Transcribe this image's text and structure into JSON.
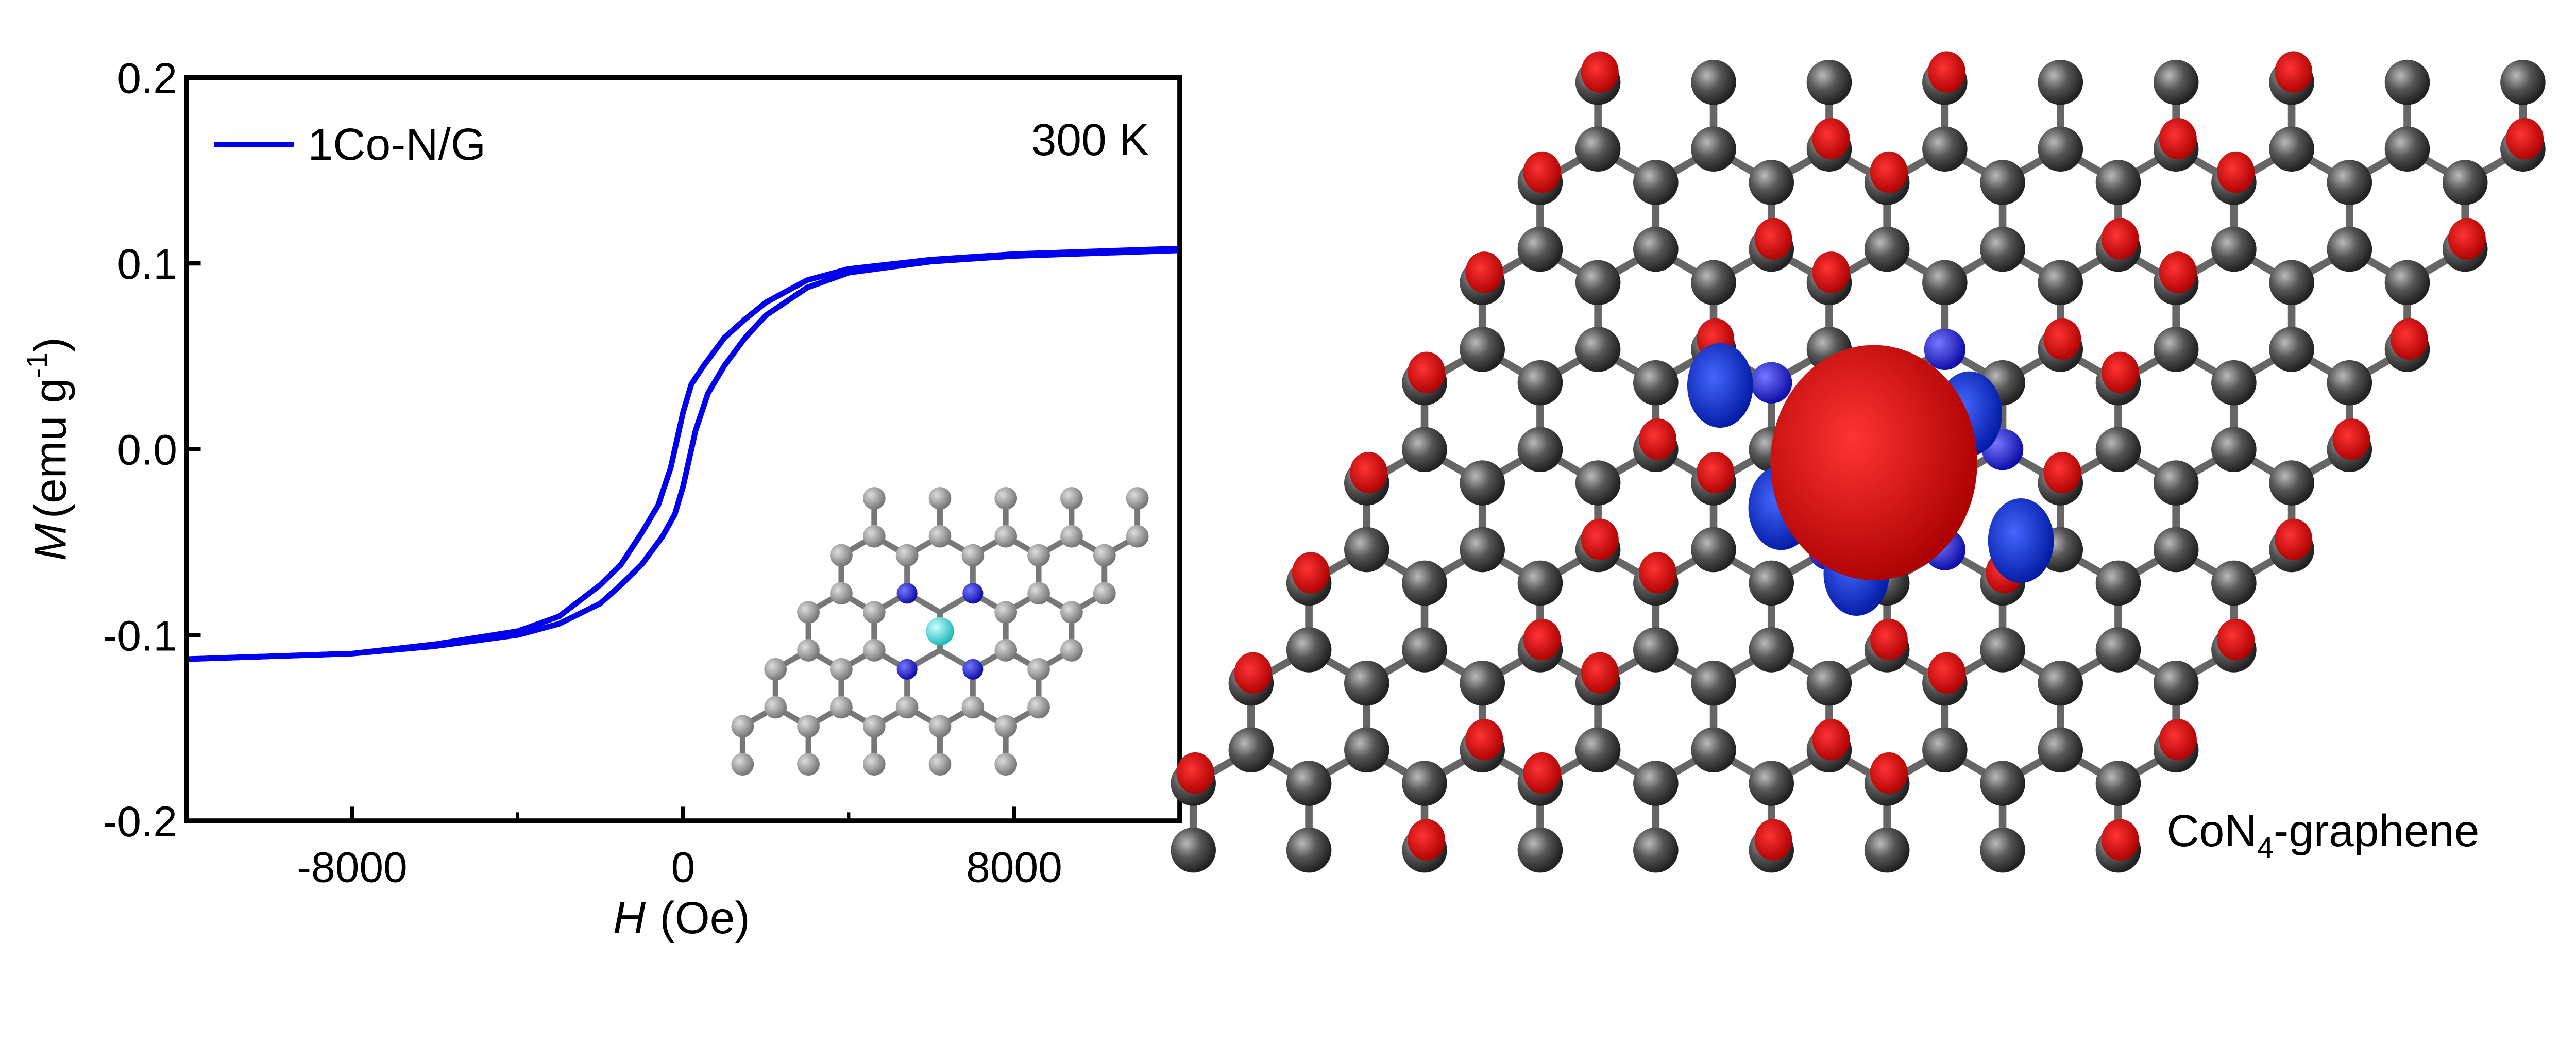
{
  "chart_data": {
    "type": "line",
    "title": "",
    "xlabel_italic": "H",
    "xlabel_unit": "(Oe)",
    "ylabel_italic": "M",
    "ylabel_unit": "(emu g",
    "ylabel_sup": "-1",
    "ylabel_close": ")",
    "xlim": [
      -12000,
      12000
    ],
    "ylim": [
      -0.2,
      0.2
    ],
    "xticks": [
      -8000,
      0,
      8000
    ],
    "xtick_labels": [
      "-8000",
      "0",
      "8000"
    ],
    "xminor": [
      -4000,
      4000
    ],
    "yticks": [
      -0.2,
      -0.1,
      0.0,
      0.1,
      0.2
    ],
    "ytick_labels": [
      "-0.2",
      "-0.1",
      "0.0",
      "0.1",
      "0.2"
    ],
    "legend": {
      "position": "top-left",
      "entries": [
        {
          "name": "1Co-N/G",
          "color": "#0000ee"
        }
      ]
    },
    "annotation": "300 K",
    "series": [
      {
        "name": "1Co-N/G",
        "color": "#0000ee",
        "branches": [
          {
            "x": [
              12000,
              8000,
              6000,
              4000,
              3000,
              2000,
              1500,
              1000,
              500,
              200,
              0,
              -300,
              -600,
              -1000,
              -1500,
              -2000,
              -3000,
              -4000,
              -6000,
              -8000,
              -12000
            ],
            "y": [
              0.108,
              0.105,
              0.102,
              0.097,
              0.091,
              0.079,
              0.07,
              0.06,
              0.045,
              0.035,
              0.02,
              -0.01,
              -0.03,
              -0.045,
              -0.062,
              -0.073,
              -0.09,
              -0.098,
              -0.105,
              -0.11,
              -0.113
            ]
          },
          {
            "x": [
              -12000,
              -8000,
              -6000,
              -4000,
              -3000,
              -2000,
              -1500,
              -1000,
              -500,
              -200,
              0,
              300,
              600,
              1000,
              1500,
              2000,
              3000,
              4000,
              6000,
              8000,
              12000
            ],
            "y": [
              -0.113,
              -0.11,
              -0.106,
              -0.1,
              -0.094,
              -0.083,
              -0.073,
              -0.062,
              -0.047,
              -0.035,
              -0.02,
              0.01,
              0.03,
              0.045,
              0.06,
              0.072,
              0.087,
              0.095,
              0.101,
              0.104,
              0.107
            ]
          }
        ]
      }
    ]
  },
  "structure": {
    "label_main": "CoN",
    "label_sub": "4",
    "label_rest": "-graphene",
    "colors": {
      "carbon": "#555555",
      "nitrogen": "#1a1aee",
      "cobalt": "#33dddd",
      "spin_up": "#dd0000",
      "spin_down": "#1030dd"
    }
  }
}
